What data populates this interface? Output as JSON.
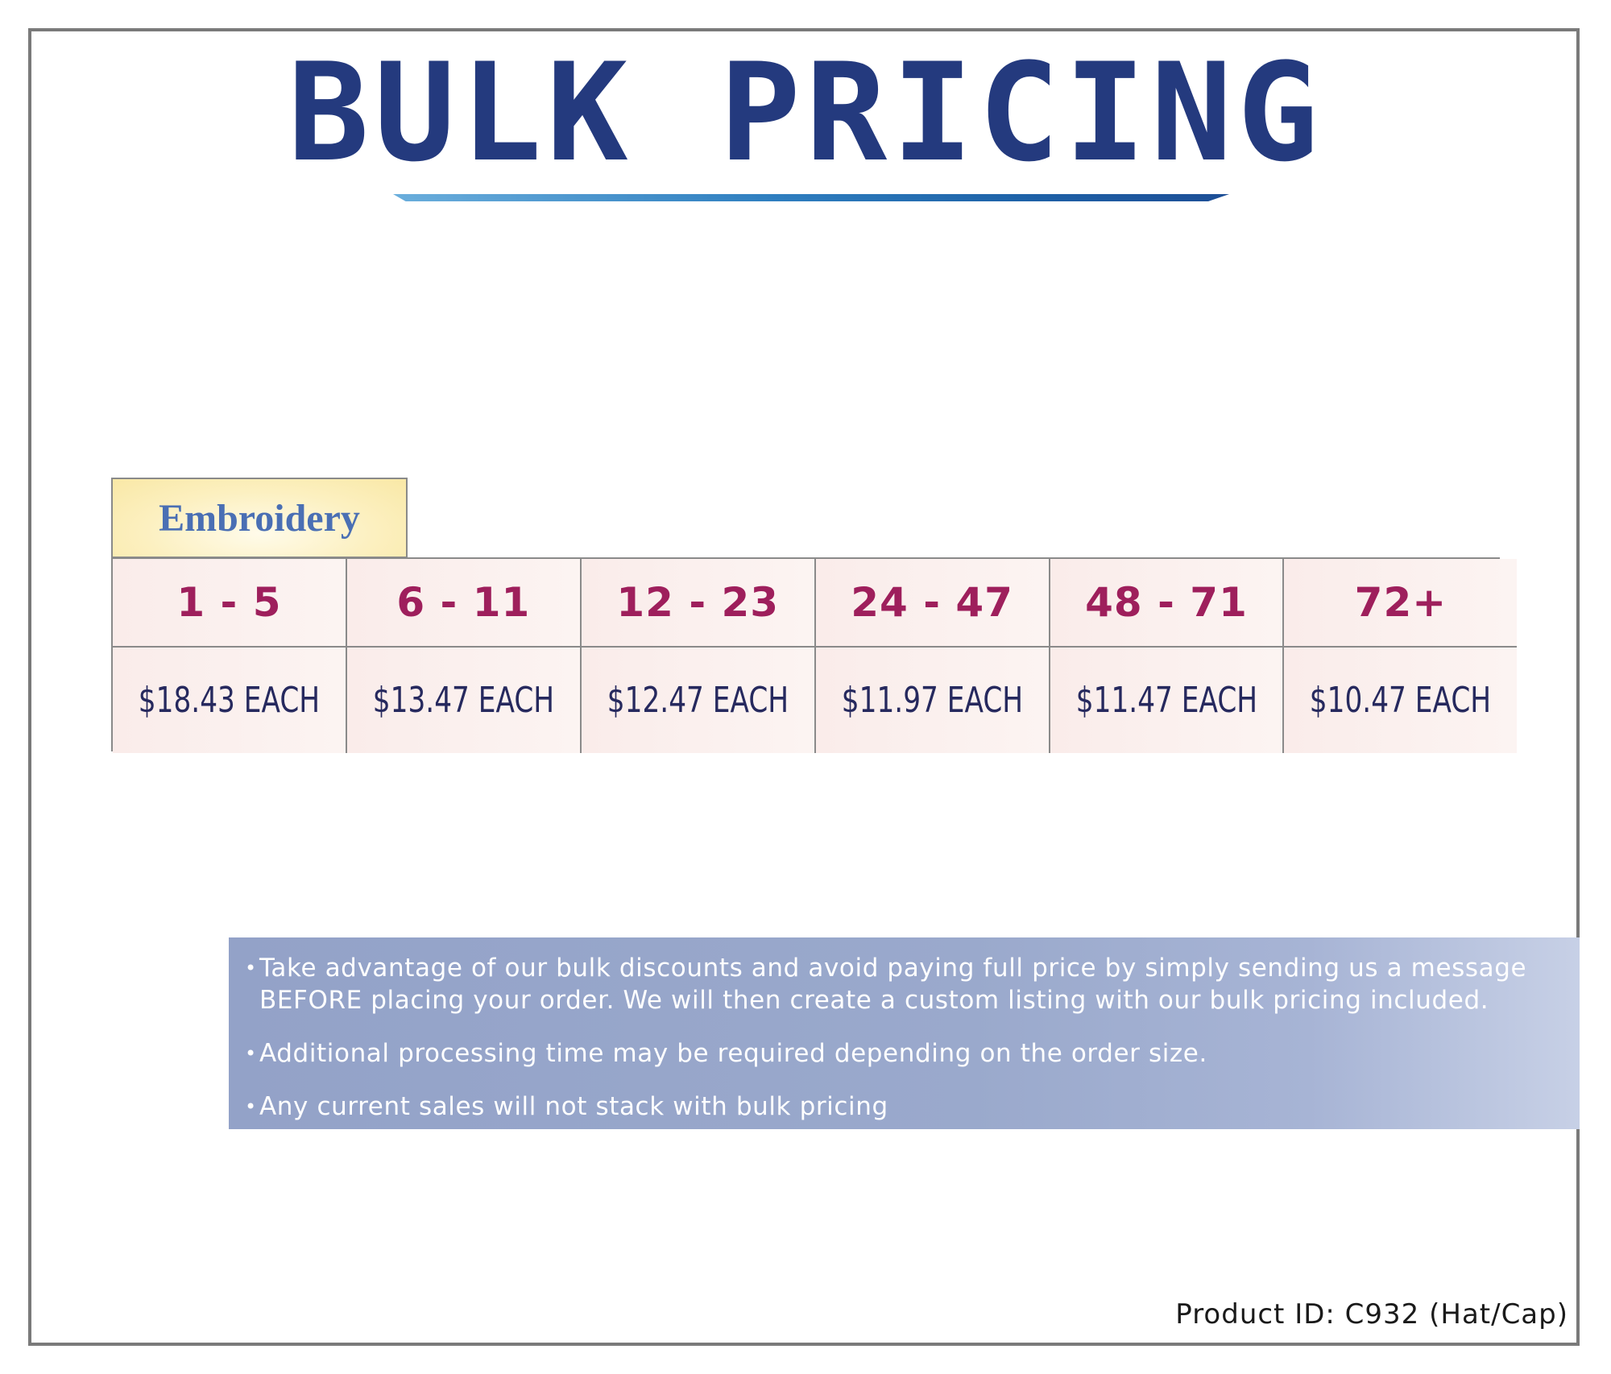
{
  "header": {
    "title": "BULK PRICING"
  },
  "pricing": {
    "category": "Embroidery",
    "tiers": [
      {
        "qty": "1 - 5",
        "price": "$18.43 EACH"
      },
      {
        "qty": "6 - 11",
        "price": "$13.47 EACH"
      },
      {
        "qty": "12 - 23",
        "price": "$12.47 EACH"
      },
      {
        "qty": "24 - 47",
        "price": "$11.97 EACH"
      },
      {
        "qty": "48 - 71",
        "price": "$11.47 EACH"
      },
      {
        "qty": "72+",
        "price": "$10.47 EACH"
      }
    ]
  },
  "notes": {
    "bullet": "•",
    "items": [
      "Take advantage of our bulk discounts and avoid paying full price by simply sending us a message BEFORE placing your order. We will then create a custom listing with our bulk pricing included.",
      "Additional processing time may be required depending on the order size.",
      "Any current sales will not stack with bulk pricing"
    ]
  },
  "footer": {
    "product_id": "Product ID: C932 (Hat/Cap)"
  },
  "colors": {
    "title": "#243a7e",
    "tier_qty": "#9e1f5c",
    "tier_price": "#26295e",
    "category": "#4a6fb4",
    "notes_bg": "#9aa9cc"
  }
}
